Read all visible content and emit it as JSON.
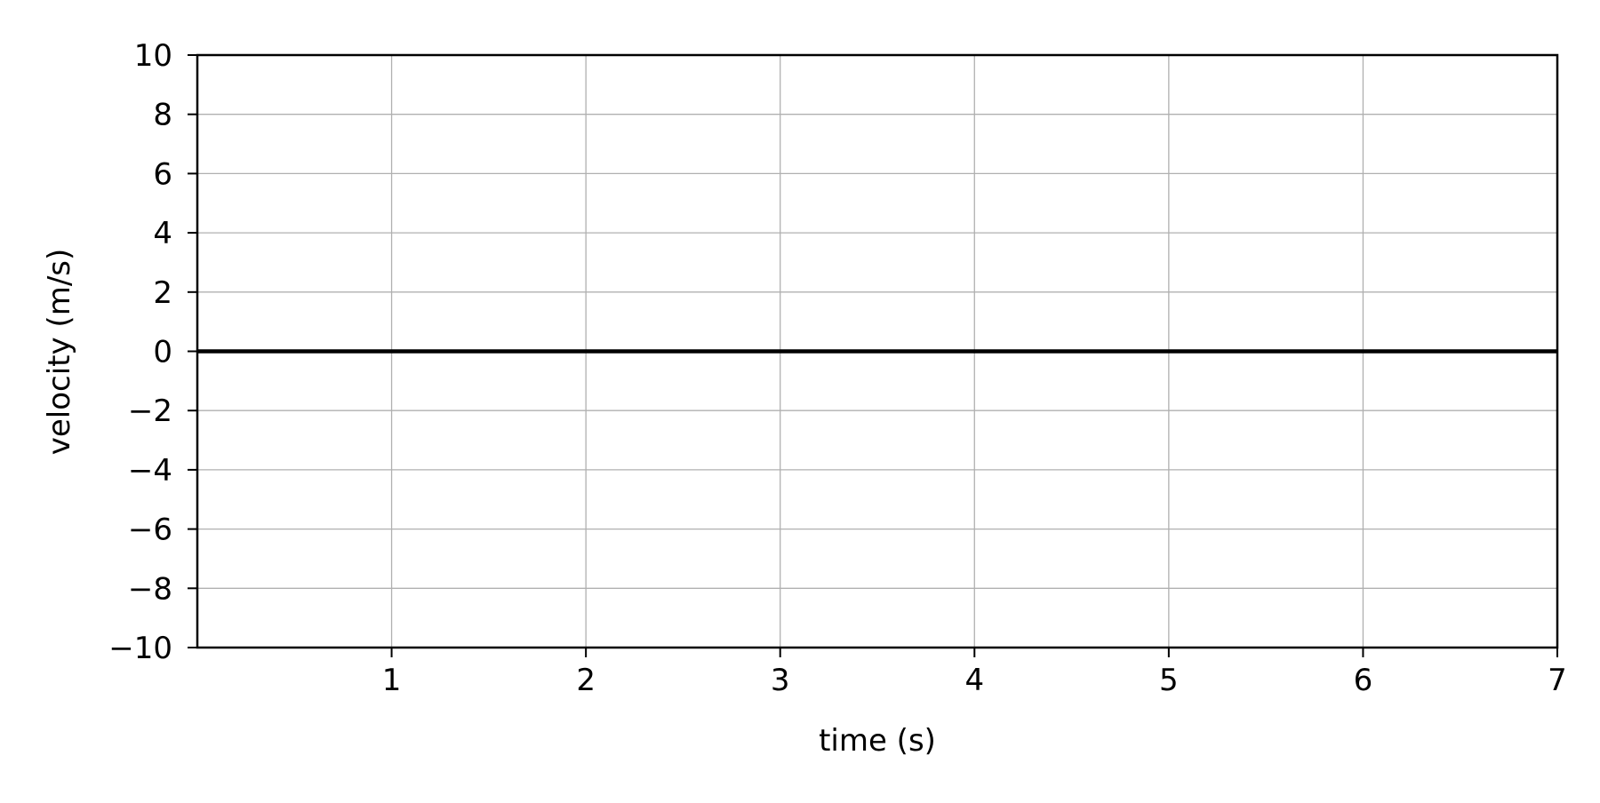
{
  "chart_data": {
    "type": "line",
    "title": "",
    "xlabel": "time (s)",
    "ylabel": "velocity (m/s)",
    "xlim": [
      0,
      7
    ],
    "ylim": [
      -10,
      10
    ],
    "x_ticks": [
      1,
      2,
      3,
      4,
      5,
      6,
      7
    ],
    "x_tick_labels": [
      "1",
      "2",
      "3",
      "4",
      "5",
      "6",
      "7"
    ],
    "y_ticks": [
      10,
      8,
      6,
      4,
      2,
      0,
      -2,
      -4,
      -6,
      -8,
      -10
    ],
    "y_tick_labels": [
      "10",
      "8",
      "6",
      "4",
      "2",
      "0",
      "−2",
      "−4",
      "−6",
      "−8",
      "−10"
    ],
    "grid": true,
    "series": [
      {
        "x": [
          0,
          7
        ],
        "y": [
          0,
          0
        ],
        "color": "#000000"
      }
    ]
  }
}
